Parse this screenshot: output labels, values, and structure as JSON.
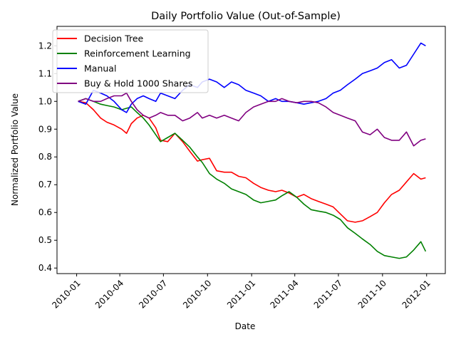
{
  "chart_data": {
    "type": "line",
    "title": "Daily Portfolio Value (Out-of-Sample)",
    "xlabel": "Date",
    "ylabel": "Normalized Portfolio Value",
    "xlim": [
      "2009-11-21",
      "2012-02-09"
    ],
    "ylim": [
      0.38,
      1.27
    ],
    "x_ticks": [
      "2010-01",
      "2010-04",
      "2010-07",
      "2010-10",
      "2011-01",
      "2011-04",
      "2011-07",
      "2011-10",
      "2012-01"
    ],
    "y_ticks": [
      0.4,
      0.5,
      0.6,
      0.7,
      0.8,
      0.9,
      1.0,
      1.1,
      1.2
    ],
    "y_tick_labels": [
      "0.4",
      "0.5",
      "0.6",
      "0.7",
      "0.8",
      "0.9",
      "1.0",
      "1.1",
      "1.2"
    ],
    "legend_position": "top-left",
    "grid": false,
    "series": [
      {
        "name": "Decision Tree",
        "color": "#ff0000",
        "x": [
          "2010-01-04",
          "2010-01-20",
          "2010-02-05",
          "2010-02-20",
          "2010-03-05",
          "2010-03-20",
          "2010-04-05",
          "2010-04-15",
          "2010-04-25",
          "2010-05-07",
          "2010-05-20",
          "2010-06-01",
          "2010-06-15",
          "2010-06-25",
          "2010-07-10",
          "2010-07-25",
          "2010-08-10",
          "2010-08-25",
          "2010-09-10",
          "2010-09-20",
          "2010-10-05",
          "2010-10-20",
          "2010-11-05",
          "2010-11-20",
          "2010-12-05",
          "2010-12-20",
          "2011-01-05",
          "2011-01-20",
          "2011-02-05",
          "2011-02-20",
          "2011-03-05",
          "2011-03-20",
          "2011-04-05",
          "2011-04-20",
          "2011-05-05",
          "2011-05-20",
          "2011-06-05",
          "2011-06-20",
          "2011-07-05",
          "2011-07-20",
          "2011-08-05",
          "2011-08-20",
          "2011-09-05",
          "2011-09-20",
          "2011-10-05",
          "2011-10-20",
          "2011-11-05",
          "2011-11-20",
          "2011-12-05",
          "2011-12-20",
          "2011-12-30"
        ],
        "y": [
          1.0,
          0.995,
          0.97,
          0.94,
          0.925,
          0.915,
          0.9,
          0.885,
          0.92,
          0.94,
          0.95,
          0.94,
          0.905,
          0.86,
          0.855,
          0.885,
          0.855,
          0.82,
          0.785,
          0.79,
          0.795,
          0.75,
          0.745,
          0.745,
          0.73,
          0.725,
          0.705,
          0.69,
          0.68,
          0.675,
          0.68,
          0.67,
          0.655,
          0.665,
          0.65,
          0.64,
          0.63,
          0.62,
          0.595,
          0.57,
          0.565,
          0.57,
          0.585,
          0.6,
          0.635,
          0.665,
          0.68,
          0.71,
          0.74,
          0.72,
          0.725
        ]
      },
      {
        "name": "Reinforcement Learning",
        "color": "#008000",
        "x": [
          "2010-01-04",
          "2010-01-20",
          "2010-02-05",
          "2010-02-20",
          "2010-03-05",
          "2010-03-20",
          "2010-04-05",
          "2010-04-15",
          "2010-04-25",
          "2010-05-07",
          "2010-05-20",
          "2010-06-01",
          "2010-06-15",
          "2010-06-25",
          "2010-07-10",
          "2010-07-25",
          "2010-08-10",
          "2010-08-25",
          "2010-09-10",
          "2010-09-20",
          "2010-10-05",
          "2010-10-20",
          "2010-11-05",
          "2010-11-20",
          "2010-12-05",
          "2010-12-20",
          "2011-01-05",
          "2011-01-20",
          "2011-02-05",
          "2011-02-20",
          "2011-03-05",
          "2011-03-20",
          "2011-04-05",
          "2011-04-20",
          "2011-05-05",
          "2011-05-20",
          "2011-06-05",
          "2011-06-20",
          "2011-07-05",
          "2011-07-20",
          "2011-08-05",
          "2011-08-20",
          "2011-09-05",
          "2011-09-20",
          "2011-10-05",
          "2011-10-20",
          "2011-11-05",
          "2011-11-20",
          "2011-12-05",
          "2011-12-20",
          "2011-12-30"
        ],
        "y": [
          1.0,
          1.01,
          1.0,
          0.99,
          0.985,
          0.98,
          0.97,
          0.975,
          0.98,
          0.96,
          0.94,
          0.915,
          0.88,
          0.855,
          0.87,
          0.885,
          0.86,
          0.835,
          0.8,
          0.78,
          0.74,
          0.72,
          0.705,
          0.685,
          0.675,
          0.665,
          0.645,
          0.635,
          0.64,
          0.645,
          0.66,
          0.675,
          0.655,
          0.63,
          0.61,
          0.605,
          0.6,
          0.59,
          0.575,
          0.545,
          0.525,
          0.505,
          0.485,
          0.46,
          0.445,
          0.44,
          0.435,
          0.44,
          0.465,
          0.495,
          0.46
        ]
      },
      {
        "name": "Manual",
        "color": "#0000ff",
        "x": [
          "2010-01-04",
          "2010-01-20",
          "2010-02-05",
          "2010-02-20",
          "2010-03-05",
          "2010-03-20",
          "2010-04-05",
          "2010-04-15",
          "2010-04-25",
          "2010-05-07",
          "2010-05-20",
          "2010-06-01",
          "2010-06-15",
          "2010-06-25",
          "2010-07-10",
          "2010-07-25",
          "2010-08-10",
          "2010-08-25",
          "2010-09-10",
          "2010-09-20",
          "2010-10-05",
          "2010-10-20",
          "2010-11-05",
          "2010-11-20",
          "2010-12-05",
          "2010-12-20",
          "2011-01-05",
          "2011-01-20",
          "2011-02-05",
          "2011-02-20",
          "2011-03-05",
          "2011-03-20",
          "2011-04-05",
          "2011-04-20",
          "2011-05-05",
          "2011-05-20",
          "2011-06-05",
          "2011-06-20",
          "2011-07-05",
          "2011-07-20",
          "2011-08-05",
          "2011-08-20",
          "2011-09-05",
          "2011-09-20",
          "2011-10-05",
          "2011-10-20",
          "2011-11-05",
          "2011-11-20",
          "2011-12-05",
          "2011-12-20",
          "2011-12-30"
        ],
        "y": [
          1.0,
          0.99,
          1.04,
          1.03,
          1.02,
          1.0,
          0.97,
          0.96,
          0.99,
          1.01,
          1.02,
          1.01,
          1.0,
          1.03,
          1.02,
          1.01,
          1.04,
          1.06,
          1.05,
          1.07,
          1.08,
          1.07,
          1.05,
          1.07,
          1.06,
          1.04,
          1.03,
          1.02,
          1.0,
          1.01,
          1.0,
          1.0,
          0.995,
          0.99,
          0.995,
          1.0,
          1.01,
          1.03,
          1.04,
          1.06,
          1.08,
          1.1,
          1.11,
          1.12,
          1.14,
          1.15,
          1.12,
          1.13,
          1.17,
          1.21,
          1.2
        ]
      },
      {
        "name": "Buy & Hold 1000 Shares",
        "color": "#800080",
        "x": [
          "2010-01-04",
          "2010-01-20",
          "2010-02-05",
          "2010-02-20",
          "2010-03-05",
          "2010-03-20",
          "2010-04-05",
          "2010-04-15",
          "2010-04-25",
          "2010-05-07",
          "2010-05-20",
          "2010-06-01",
          "2010-06-15",
          "2010-06-25",
          "2010-07-10",
          "2010-07-25",
          "2010-08-10",
          "2010-08-25",
          "2010-09-10",
          "2010-09-20",
          "2010-10-05",
          "2010-10-20",
          "2010-11-05",
          "2010-11-20",
          "2010-12-05",
          "2010-12-20",
          "2011-01-05",
          "2011-01-20",
          "2011-02-05",
          "2011-02-20",
          "2011-03-05",
          "2011-03-20",
          "2011-04-05",
          "2011-04-20",
          "2011-05-05",
          "2011-05-20",
          "2011-06-05",
          "2011-06-20",
          "2011-07-05",
          "2011-07-20",
          "2011-08-05",
          "2011-08-20",
          "2011-09-05",
          "2011-09-20",
          "2011-10-05",
          "2011-10-20",
          "2011-11-05",
          "2011-11-20",
          "2011-12-05",
          "2011-12-20",
          "2011-12-30"
        ],
        "y": [
          1.0,
          1.01,
          1.0,
          1.0,
          1.01,
          1.02,
          1.02,
          1.03,
          1.0,
          0.97,
          0.95,
          0.94,
          0.95,
          0.96,
          0.95,
          0.95,
          0.93,
          0.94,
          0.96,
          0.94,
          0.95,
          0.94,
          0.95,
          0.94,
          0.93,
          0.96,
          0.98,
          0.99,
          1.0,
          1.0,
          1.01,
          1.0,
          0.995,
          1.0,
          1.0,
          0.995,
          0.98,
          0.96,
          0.95,
          0.94,
          0.93,
          0.89,
          0.88,
          0.9,
          0.87,
          0.86,
          0.86,
          0.89,
          0.84,
          0.86,
          0.865
        ]
      }
    ]
  }
}
